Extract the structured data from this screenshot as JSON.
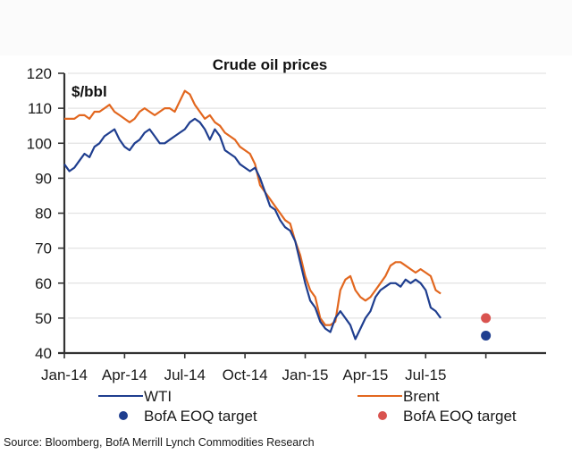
{
  "chart_data": {
    "type": "line",
    "title": "Crude oil prices",
    "ylabel": "$/bbl",
    "xlabel": "",
    "ylim": [
      40,
      120
    ],
    "yticks": [
      40,
      50,
      60,
      70,
      80,
      90,
      100,
      110,
      120
    ],
    "xlim_months": [
      0,
      24
    ],
    "xticks": [
      {
        "label": "Jan-14",
        "month": 0
      },
      {
        "label": "Apr-14",
        "month": 3
      },
      {
        "label": "Jul-14",
        "month": 6
      },
      {
        "label": "Oct-14",
        "month": 9
      },
      {
        "label": "Jan-15",
        "month": 12
      },
      {
        "label": "Apr-15",
        "month": 15
      },
      {
        "label": "Jul-15",
        "month": 18
      },
      {
        "label": "",
        "month": 21
      }
    ],
    "grid": true,
    "x_months": [
      0,
      0.25,
      0.5,
      0.75,
      1,
      1.25,
      1.5,
      1.75,
      2,
      2.25,
      2.5,
      2.75,
      3,
      3.25,
      3.5,
      3.75,
      4,
      4.25,
      4.5,
      4.75,
      5,
      5.25,
      5.5,
      5.75,
      6,
      6.25,
      6.5,
      6.75,
      7,
      7.25,
      7.5,
      7.75,
      8,
      8.25,
      8.5,
      8.75,
      9,
      9.25,
      9.5,
      9.75,
      10,
      10.25,
      10.5,
      10.75,
      11,
      11.25,
      11.5,
      11.75,
      12,
      12.25,
      12.5,
      12.75,
      13,
      13.25,
      13.5,
      13.75,
      14,
      14.25,
      14.5,
      14.75,
      15,
      15.25,
      15.5,
      15.75,
      16,
      16.25,
      16.5,
      16.75,
      17,
      17.25,
      17.5,
      17.75,
      18,
      18.25,
      18.5,
      18.75
    ],
    "series": [
      {
        "name": "WTI",
        "color": "#1f3e8f",
        "values": [
          94,
          92,
          93,
          95,
          97,
          96,
          99,
          100,
          102,
          103,
          104,
          101,
          99,
          98,
          100,
          101,
          103,
          104,
          102,
          100,
          100,
          101,
          102,
          103,
          104,
          106,
          107,
          106,
          104,
          101,
          104,
          102,
          98,
          97,
          96,
          94,
          93,
          92,
          93,
          90,
          86,
          82,
          81,
          78,
          76,
          75,
          72,
          66,
          60,
          55,
          53,
          49,
          47,
          46,
          50,
          52,
          50,
          48,
          44,
          47,
          50,
          52,
          56,
          58,
          59,
          60,
          60,
          59,
          61,
          60,
          61,
          60,
          58,
          53,
          52,
          50
        ]
      },
      {
        "name": "Brent",
        "color": "#e2671f",
        "values": [
          107,
          107,
          107,
          108,
          108,
          107,
          109,
          109,
          110,
          111,
          109,
          108,
          107,
          106,
          107,
          109,
          110,
          109,
          108,
          109,
          110,
          110,
          109,
          112,
          115,
          114,
          111,
          109,
          107,
          108,
          106,
          105,
          103,
          102,
          101,
          99,
          98,
          97,
          94,
          88,
          86,
          84,
          82,
          80,
          78,
          77,
          72,
          68,
          62,
          58,
          56,
          50,
          48,
          48,
          49,
          58,
          61,
          62,
          58,
          56,
          55,
          56,
          58,
          60,
          62,
          65,
          66,
          66,
          65,
          64,
          63,
          64,
          63,
          62,
          58,
          57
        ]
      }
    ],
    "targets": [
      {
        "name": "BofA EOQ target",
        "series": "WTI",
        "month": 21,
        "value": 45,
        "color": "#1f3e8f"
      },
      {
        "name": "BofA EOQ target",
        "series": "Brent",
        "month": 21,
        "value": 50,
        "color": "#d9534f"
      }
    ],
    "legend": {
      "placement": "bottom",
      "entries": [
        {
          "label": "WTI",
          "kind": "line",
          "color": "#1f3e8f"
        },
        {
          "label": "Brent",
          "kind": "line",
          "color": "#e2671f"
        },
        {
          "label": "BofA EOQ target",
          "kind": "dot",
          "color": "#1f3e8f"
        },
        {
          "label": "BofA EOQ target",
          "kind": "dot",
          "color": "#d9534f"
        }
      ]
    },
    "source": "Source: Bloomberg, BofA Merrill Lynch Commodities Research"
  }
}
